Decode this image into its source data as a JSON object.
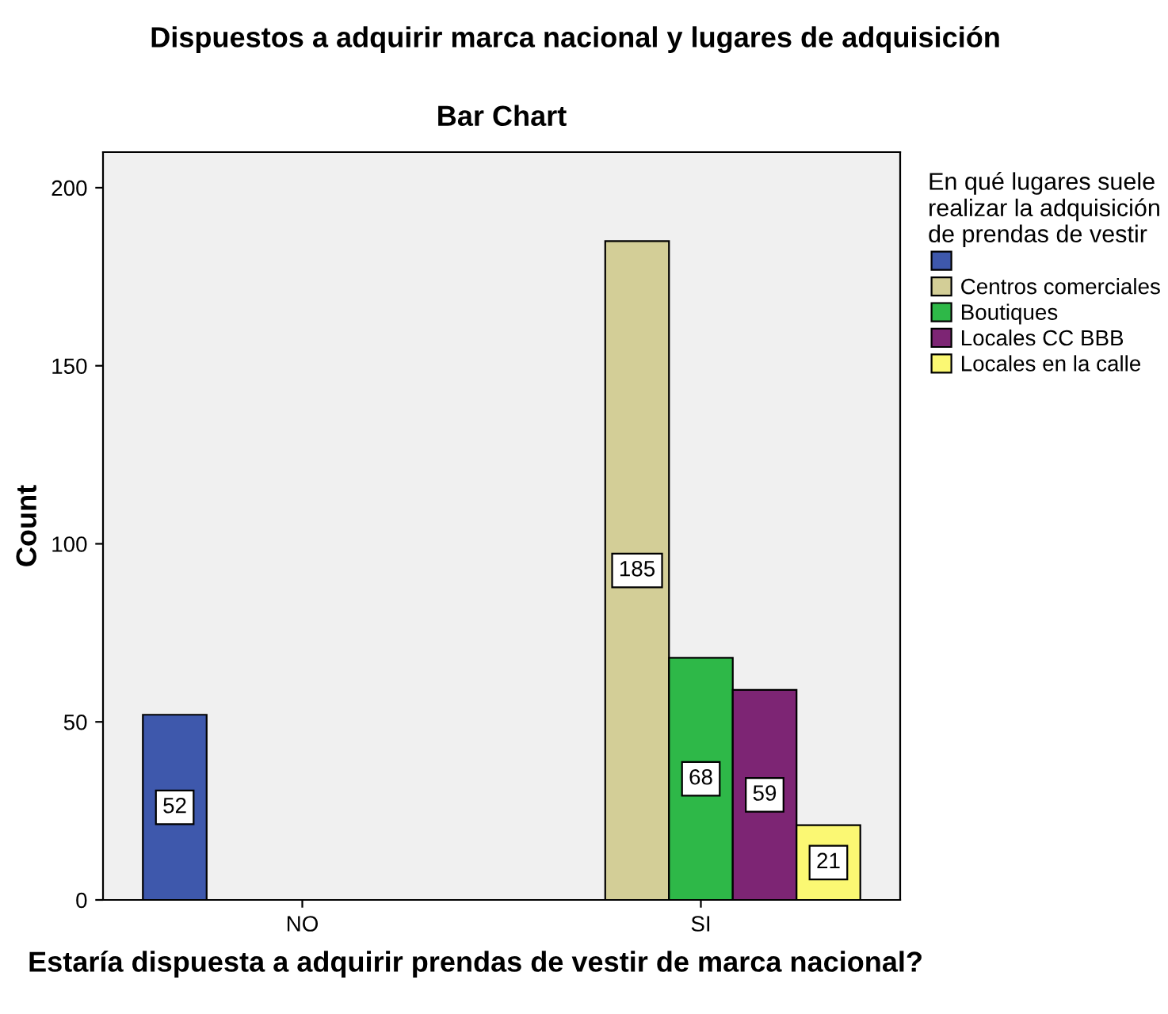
{
  "chart_data": {
    "type": "bar",
    "title": "Dispuestos a adquirir marca nacional y lugares de adquisición",
    "subtitle": "Bar Chart",
    "xlabel": "Estaría dispuesta a adquirir prendas de vestir de marca nacional?",
    "ylabel": "Count",
    "legend_title": "En qué lugares suele\nrealizar la adquisición\nde prendas de vestir",
    "categories": [
      "NO",
      "SI"
    ],
    "series": [
      {
        "name": null,
        "color": "#3e58ac",
        "values": [
          52,
          null
        ]
      },
      {
        "name": "Centros comerciales",
        "color": "#d3ce97",
        "values": [
          null,
          185
        ]
      },
      {
        "name": "Boutiques",
        "color": "#2eb848",
        "values": [
          null,
          68
        ]
      },
      {
        "name": "Locales CC BBB",
        "color": "#7d2574",
        "values": [
          null,
          59
        ]
      },
      {
        "name": "Locales en la calle",
        "color": "#fbf873",
        "values": [
          null,
          21
        ]
      }
    ],
    "ylim": [
      0,
      210
    ],
    "yticks": [
      0,
      50,
      100,
      150,
      200
    ],
    "grid": false,
    "legend": "right",
    "data_labels": true
  }
}
